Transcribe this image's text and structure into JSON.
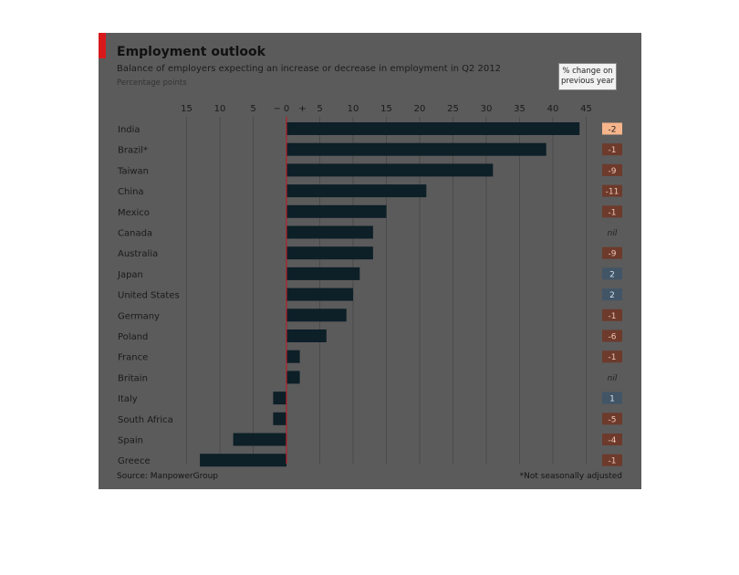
{
  "chart_data": {
    "type": "bar",
    "orientation": "horizontal",
    "title": "Employment outlook",
    "subtitle": "Balance of employers expecting an increase or decrease in employment in Q2 2012",
    "units_label": "Percentage points",
    "change_header": [
      "% change on",
      "previous year"
    ],
    "categories": [
      "India",
      "Brazil*",
      "Taiwan",
      "China",
      "Mexico",
      "Canada",
      "Australia",
      "Japan",
      "United States",
      "Germany",
      "Poland",
      "France",
      "Britain",
      "Italy",
      "South Africa",
      "Spain",
      "Greece"
    ],
    "values": [
      44,
      39,
      31,
      21,
      15,
      13,
      13,
      11,
      10,
      9,
      6,
      2,
      2,
      -2,
      -2,
      -8,
      -13
    ],
    "change": [
      "-2",
      "-1",
      "-9",
      "-11",
      "-1",
      "nil",
      "-9",
      "2",
      "2",
      "-1",
      "-6",
      "-1",
      "nil",
      "1",
      "-5",
      "-4",
      "-1"
    ],
    "change_colors": {
      "highlight": "#f6b58b",
      "negative": "#6d3a2c",
      "positive": "#415566",
      "nil_text": "#222222",
      "negative_text": "#f2c6b2",
      "positive_text": "#cfe0ec",
      "highlight_text": "#222222"
    },
    "x_ticks": [
      -15,
      -10,
      -5,
      0,
      5,
      10,
      15,
      20,
      25,
      30,
      35,
      40,
      45
    ],
    "x_tick_labels": [
      "15",
      "10",
      "5",
      "0",
      "5",
      "10",
      "15",
      "20",
      "25",
      "30",
      "35",
      "40",
      "45"
    ],
    "xlim": [
      -17,
      45
    ],
    "bar_color": "#0d1f27",
    "zero_line_color": "#b3202a",
    "grid": true,
    "source": "Source: ManpowerGroup",
    "footnote": "*Not seasonally adjusted"
  }
}
